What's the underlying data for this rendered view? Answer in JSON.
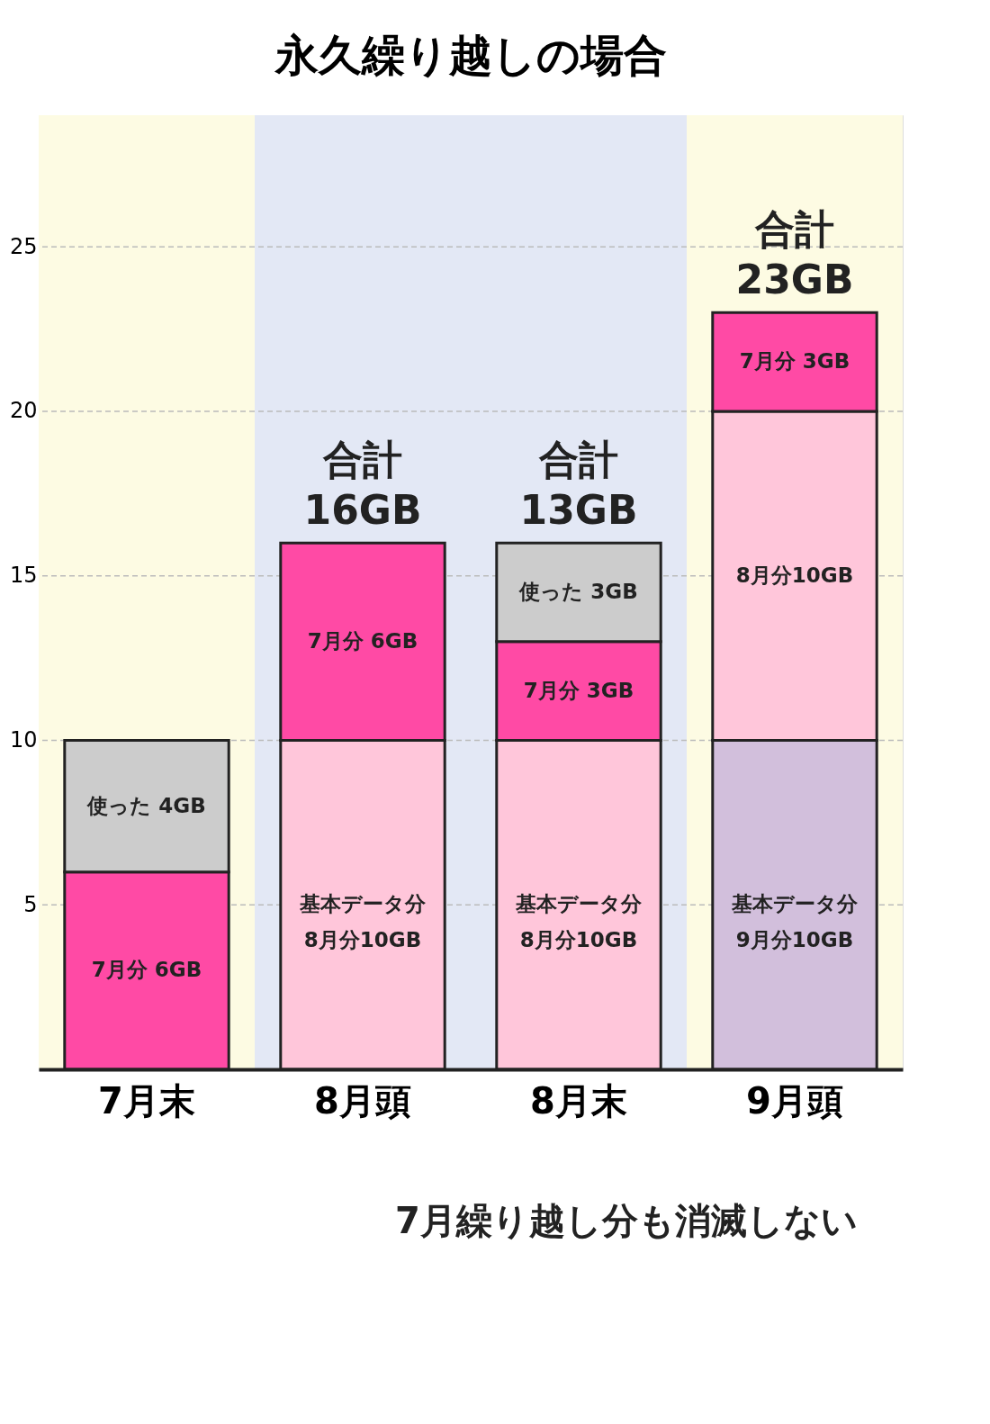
{
  "chart_data": {
    "type": "bar",
    "title": "永久繰り越しの場合",
    "categories": [
      "7月末",
      "8月頭",
      "8月末",
      "9月頭"
    ],
    "stacked": true,
    "series": [
      {
        "colors": [
          null,
          "#ffc6da",
          "#ffc6da",
          "#d2bfdc"
        ],
        "values": [
          null,
          10,
          10,
          10
        ],
        "value_labels": [
          null,
          "基本データ分\n8月分10GB",
          "基本データ分\n8月分10GB",
          "基本データ分\n9月分10GB"
        ]
      },
      {
        "color": "#ffc6da",
        "values": [
          null,
          null,
          null,
          10
        ],
        "value_labels": [
          null,
          null,
          null,
          "8月分10GB"
        ]
      },
      {
        "color": "#ff4aa5",
        "values": [
          6,
          6,
          3,
          3
        ],
        "value_labels": [
          "7月分 6GB",
          "7月分 6GB",
          "7月分 3GB",
          "7月分 3GB"
        ]
      },
      {
        "color": "#cccccc",
        "values": [
          4,
          null,
          3,
          null
        ],
        "value_labels": [
          "使った 4GB",
          null,
          "使った 3GB",
          null
        ]
      }
    ],
    "totals": [
      null,
      "合計\n16GB",
      "合計\n13GB",
      "合計\n23GB"
    ],
    "ylim": [
      0,
      29
    ],
    "yticks": [
      5,
      10,
      15,
      20,
      25
    ],
    "grid": "y",
    "bands": [
      {
        "axis": "x",
        "from": "7月末",
        "to": "7月末",
        "color": "#fdfbe3"
      },
      {
        "axis": "x",
        "from": "8月頭",
        "to": "8月末",
        "color": "#e3e8f5"
      },
      {
        "axis": "x",
        "from": "9月頭",
        "to": "9月頭",
        "color": "#fdfbe3"
      }
    ],
    "annotations": [
      "7月繰り越し分も消滅しない"
    ]
  }
}
